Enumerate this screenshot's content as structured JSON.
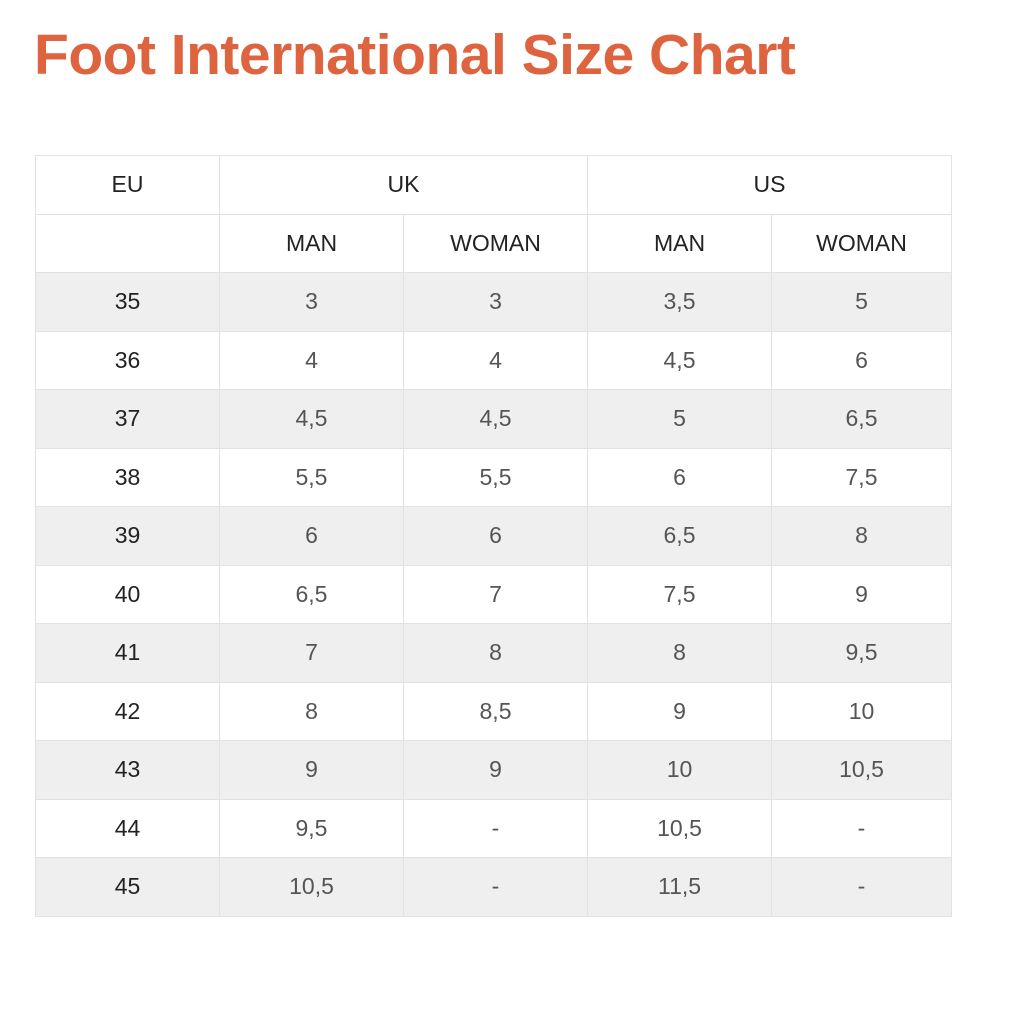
{
  "title": "Foot International Size Chart",
  "accent_color": "#de6440",
  "table": {
    "group_headers": [
      "EU",
      "UK",
      "US"
    ],
    "sub_headers": [
      "",
      "MAN",
      "WOMAN",
      "MAN",
      "WOMAN"
    ],
    "rows": [
      [
        "35",
        "3",
        "3",
        "3,5",
        "5"
      ],
      [
        "36",
        "4",
        "4",
        "4,5",
        "6"
      ],
      [
        "37",
        "4,5",
        "4,5",
        "5",
        "6,5"
      ],
      [
        "38",
        "5,5",
        "5,5",
        "6",
        "7,5"
      ],
      [
        "39",
        "6",
        "6",
        "6,5",
        "8"
      ],
      [
        "40",
        "6,5",
        "7",
        "7,5",
        "9"
      ],
      [
        "41",
        "7",
        "8",
        "8",
        "9,5"
      ],
      [
        "42",
        "8",
        "8,5",
        "9",
        "10"
      ],
      [
        "43",
        "9",
        "9",
        "10",
        "10,5"
      ],
      [
        "44",
        "9,5",
        "-",
        "10,5",
        "-"
      ],
      [
        "45",
        "10,5",
        "-",
        "11,5",
        "-"
      ]
    ]
  }
}
